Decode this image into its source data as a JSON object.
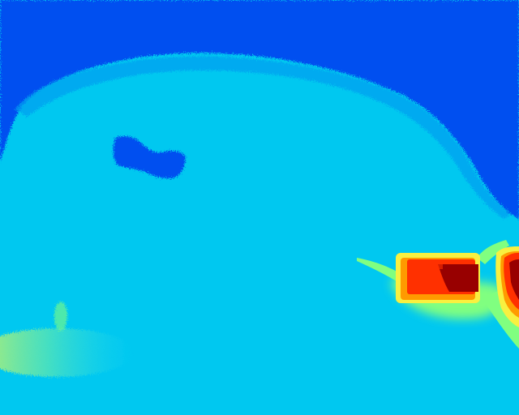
{
  "image": {
    "kind": "false-color thermal image",
    "palette": {
      "deep_blue": "#0050f0",
      "cyan": "#00c8f0",
      "light_cyan": "#20d8f8",
      "green": "#80ff80",
      "yellow": "#f8f040",
      "orange": "#ff9a00",
      "red": "#ff3000",
      "dark_red": "#980000"
    },
    "regions": [
      "cold-sky-area",
      "cool-cloud-body",
      "dark-cold-spot",
      "warm-ground-patch",
      "hot-object-left",
      "hot-object-right"
    ]
  }
}
